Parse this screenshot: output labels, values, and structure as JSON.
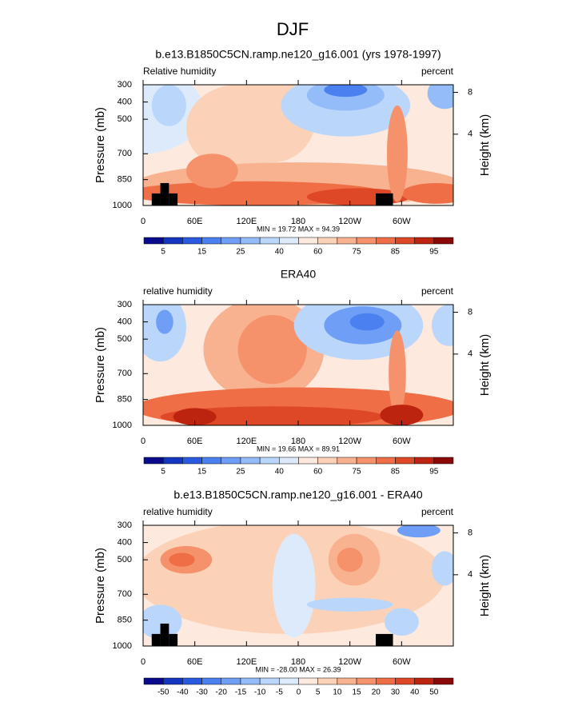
{
  "title": "DJF",
  "chart_data": [
    {
      "type": "contour",
      "title": "b.e13.B1850C5CN.ramp.ne120_g16.001 (yrs 1978-1997)",
      "left_label": "Relative humidity",
      "right_label": "percent",
      "y_label": "Pressure (mb)",
      "y2_label": "Height (km)",
      "stats": "MIN = 19.72   MAX = 94.39",
      "xlim": [
        0,
        360
      ],
      "xticks": [
        0,
        {
          "value": 60,
          "label": "60E"
        },
        {
          "value": 120,
          "label": "120E"
        },
        180,
        {
          "value": 240,
          "label": "120W"
        },
        {
          "value": 300,
          "label": "60W"
        }
      ],
      "ylim": [
        1000,
        300
      ],
      "yticks": [
        300,
        400,
        500,
        700,
        850,
        1000
      ],
      "y2ticks": [
        4,
        8
      ],
      "colorbar_labels": [
        5,
        15,
        25,
        40,
        60,
        75,
        85,
        95
      ]
    },
    {
      "type": "contour",
      "title": "ERA40",
      "left_label": "relative humidity",
      "right_label": "percent",
      "y_label": "Pressure (mb)",
      "y2_label": "Height (km)",
      "stats": "MIN = 19.66   MAX = 89.91",
      "xlim": [
        0,
        360
      ],
      "xticks": [
        0,
        {
          "value": 60,
          "label": "60E"
        },
        {
          "value": 120,
          "label": "120E"
        },
        180,
        {
          "value": 240,
          "label": "120W"
        },
        {
          "value": 300,
          "label": "60W"
        }
      ],
      "ylim": [
        1000,
        300
      ],
      "yticks": [
        300,
        400,
        500,
        700,
        850,
        1000
      ],
      "y2ticks": [
        4,
        8
      ],
      "colorbar_labels": [
        5,
        15,
        25,
        40,
        60,
        75,
        85,
        95
      ]
    },
    {
      "type": "contour",
      "title": "b.e13.B1850C5CN.ramp.ne120_g16.001 - ERA40",
      "left_label": "relative humidity",
      "right_label": "percent",
      "y_label": "Pressure (mb)",
      "y2_label": "Height (km)",
      "stats": "MIN = -28.00   MAX = 26.39",
      "xlim": [
        0,
        360
      ],
      "xticks": [
        0,
        {
          "value": 60,
          "label": "60E"
        },
        {
          "value": 120,
          "label": "120E"
        },
        180,
        {
          "value": 240,
          "label": "120W"
        },
        {
          "value": 300,
          "label": "60W"
        }
      ],
      "ylim": [
        1000,
        300
      ],
      "yticks": [
        300,
        400,
        500,
        700,
        850,
        1000
      ],
      "y2ticks": [
        4,
        8
      ],
      "colorbar_labels": [
        -50,
        -40,
        -30,
        -20,
        -15,
        -10,
        -5,
        0,
        5,
        10,
        15,
        20,
        30,
        40,
        50
      ]
    }
  ],
  "colors": [
    "#0a0a8c",
    "#1436c0",
    "#2a5ae0",
    "#4a80f0",
    "#6e9ef5",
    "#94bcf8",
    "#bad6fa",
    "#dceafc",
    "#fde9dd",
    "#fbd2b8",
    "#f8b290",
    "#f5926c",
    "#ef6e46",
    "#de4826",
    "#bd2410",
    "#8a0808"
  ]
}
